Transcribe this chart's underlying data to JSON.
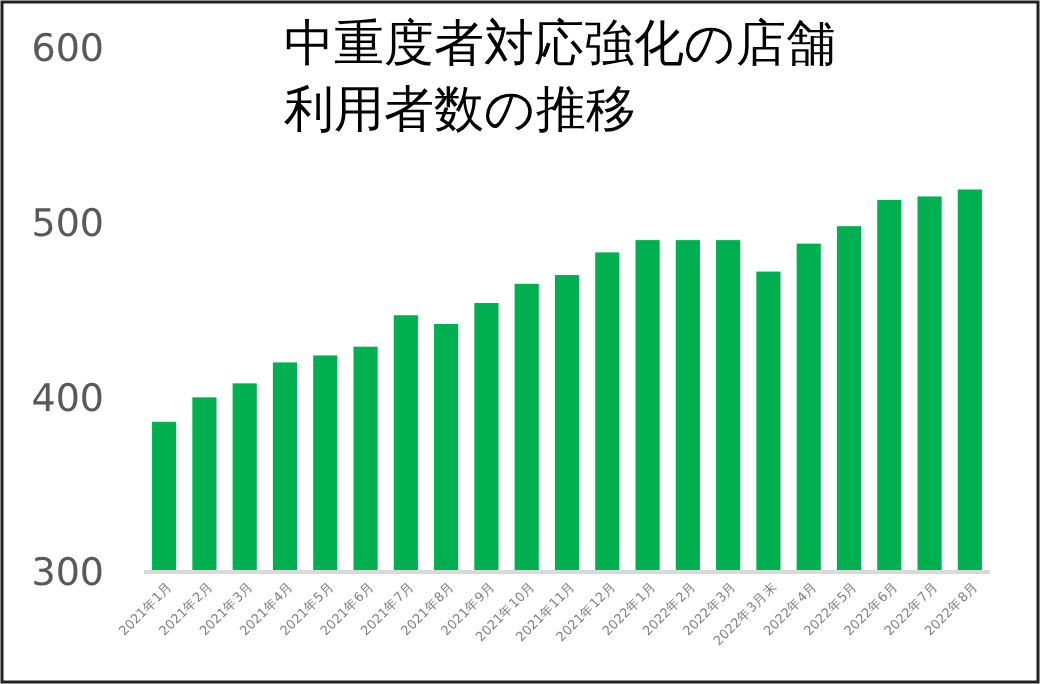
{
  "chart_data": {
    "type": "bar",
    "title": "中重度者対応強化の店舗利用者数の推移",
    "categories": [
      "2021年1月",
      "2021年2月",
      "2021年3月",
      "2021年4月",
      "2021年5月",
      "2021年6月",
      "2021年7月",
      "2021年8月",
      "2021年9月",
      "2021年10月",
      "2021年11月",
      "2021年12月",
      "2022年1月",
      "2022年2月",
      "2022年3月",
      "2022年3月末",
      "2022年4月",
      "2022年5月",
      "2022年6月",
      "2022年7月",
      "2022年8月"
    ],
    "values": [
      386,
      400,
      408,
      420,
      424,
      429,
      447,
      442,
      454,
      465,
      470,
      483,
      490,
      490,
      490,
      472,
      488,
      498,
      513,
      515,
      519
    ],
    "color": "#00b050",
    "ylim": [
      300,
      600
    ],
    "yticks": [
      300,
      400,
      500,
      600
    ],
    "grid": false
  }
}
